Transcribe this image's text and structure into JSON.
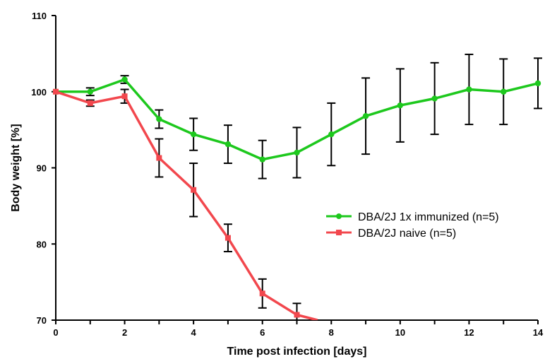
{
  "chart_data": {
    "type": "line",
    "xlabel": "Time post infection [days]",
    "ylabel": "Body weight [%]",
    "xlim": [
      0,
      14
    ],
    "ylim": [
      70,
      110
    ],
    "x_ticks": [
      0,
      2,
      4,
      6,
      8,
      10,
      12,
      14
    ],
    "y_ticks": [
      70,
      80,
      90,
      100,
      110
    ],
    "legend_position": "right-middle",
    "grid": false,
    "series": [
      {
        "name": "DBA/2J 1x immunized (n=5)",
        "color": "#1dc81d",
        "marker": "circle",
        "points": [
          {
            "x": 0,
            "y": 100.0,
            "err": 0
          },
          {
            "x": 1,
            "y": 100.0,
            "err": 0.5
          },
          {
            "x": 2,
            "y": 101.6,
            "err": 0.5
          },
          {
            "x": 3,
            "y": 96.4,
            "err": 1.2
          },
          {
            "x": 4,
            "y": 94.4,
            "err": 2.1
          },
          {
            "x": 5,
            "y": 93.1,
            "err": 2.5
          },
          {
            "x": 6,
            "y": 91.1,
            "err": 2.5
          },
          {
            "x": 7,
            "y": 92.0,
            "err": 3.3
          },
          {
            "x": 8,
            "y": 94.4,
            "err": 4.1
          },
          {
            "x": 9,
            "y": 96.8,
            "err": 5.0
          },
          {
            "x": 10,
            "y": 98.2,
            "err": 4.8
          },
          {
            "x": 11,
            "y": 99.1,
            "err": 4.7
          },
          {
            "x": 12,
            "y": 100.3,
            "err": 4.6
          },
          {
            "x": 13,
            "y": 100.0,
            "err": 4.3
          },
          {
            "x": 14,
            "y": 101.1,
            "err": 3.3
          }
        ]
      },
      {
        "name": "DBA/2J naive (n=5)",
        "color": "#f2474d",
        "marker": "square",
        "points": [
          {
            "x": 0,
            "y": 100.0,
            "err": 0
          },
          {
            "x": 1,
            "y": 98.5,
            "err": 0.4
          },
          {
            "x": 2,
            "y": 99.4,
            "err": 0.9
          },
          {
            "x": 3,
            "y": 91.3,
            "err": 2.5
          },
          {
            "x": 4,
            "y": 87.1,
            "err": 3.5
          },
          {
            "x": 5,
            "y": 80.8,
            "err": 1.8
          },
          {
            "x": 6,
            "y": 73.5,
            "err": 1.9
          },
          {
            "x": 7,
            "y": 70.7,
            "err": 1.5
          },
          {
            "x": 7.6,
            "y": 70.0,
            "err": 0
          }
        ]
      }
    ]
  }
}
